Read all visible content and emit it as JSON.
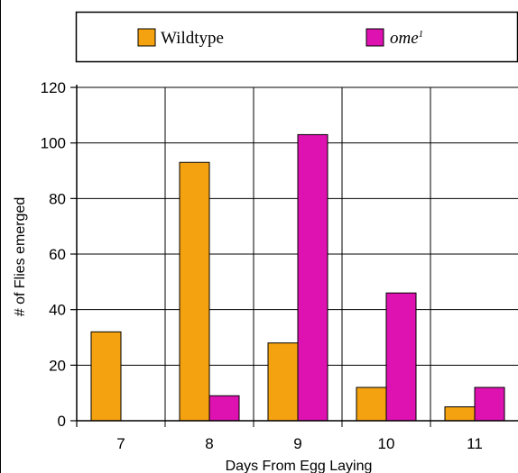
{
  "chart_data": {
    "type": "bar",
    "xlabel": "Days From Egg Laying",
    "ylabel": "# of Flies emerged",
    "categories": [
      "7",
      "8",
      "9",
      "10",
      "11"
    ],
    "ylim": [
      0,
      120
    ],
    "yticks": [
      "0",
      "20",
      "40",
      "60",
      "80",
      "100",
      "120"
    ],
    "grid": "on",
    "legend_position": "top",
    "series": [
      {
        "name": "Wildtype",
        "color": "#f4a20f",
        "values": [
          32,
          93,
          28,
          12,
          5
        ]
      },
      {
        "name": "ome",
        "name_superscript": "1",
        "color": "#dd12b0",
        "values": [
          0,
          9,
          103,
          46,
          12
        ]
      }
    ]
  }
}
